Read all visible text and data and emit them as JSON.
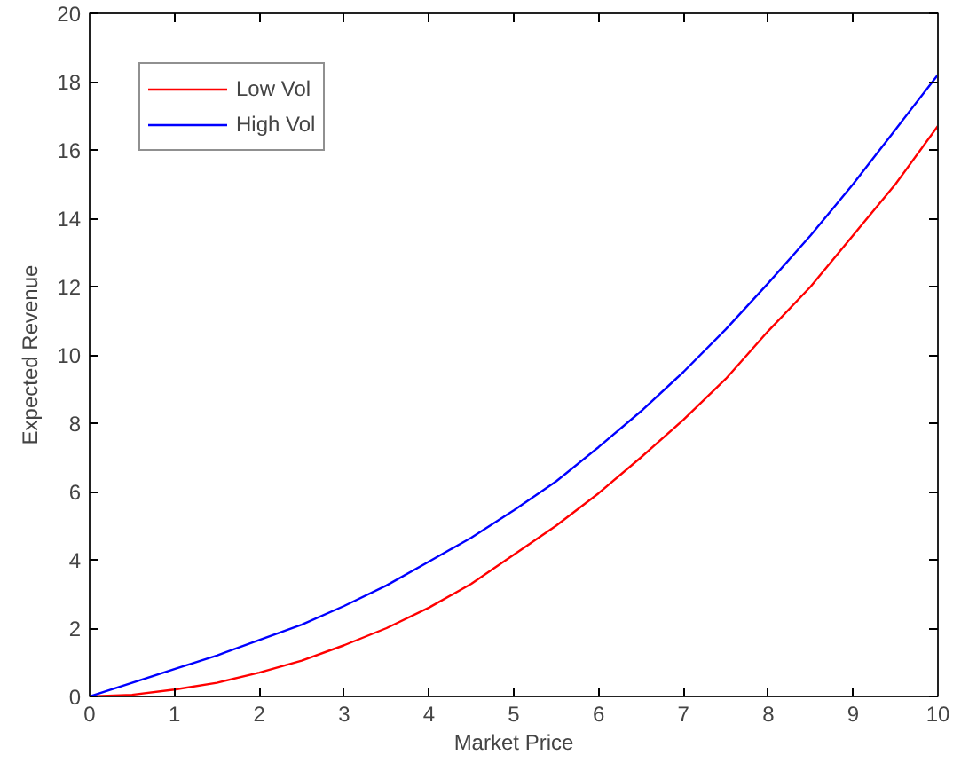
{
  "chart_data": {
    "type": "line",
    "xlabel": "Market Price",
    "ylabel": "Expected Revenue",
    "x": [
      0,
      0.5,
      1,
      1.5,
      2,
      2.5,
      3,
      3.5,
      4,
      4.5,
      5,
      5.5,
      6,
      6.5,
      7,
      7.5,
      8,
      8.5,
      9,
      9.5,
      10
    ],
    "series": [
      {
        "name": "Low Vol",
        "color": "#ff0000",
        "values": [
          0,
          0.05,
          0.2,
          0.4,
          0.7,
          1.05,
          1.5,
          2.0,
          2.6,
          3.3,
          4.15,
          5.0,
          5.95,
          7.0,
          8.1,
          9.3,
          10.7,
          12.0,
          13.5,
          15.0,
          16.7
        ]
      },
      {
        "name": "High Vol",
        "color": "#0000ff",
        "values": [
          0,
          0.4,
          0.8,
          1.2,
          1.65,
          2.1,
          2.65,
          3.25,
          3.95,
          4.65,
          5.45,
          6.3,
          7.3,
          8.35,
          9.5,
          10.75,
          12.1,
          13.5,
          15.0,
          16.6,
          18.2
        ]
      }
    ],
    "xlim": [
      0,
      10
    ],
    "ylim": [
      0,
      20
    ],
    "xticks": [
      0,
      1,
      2,
      3,
      4,
      5,
      6,
      7,
      8,
      9,
      10
    ],
    "yticks": [
      0,
      2,
      4,
      6,
      8,
      10,
      12,
      14,
      16,
      18,
      20
    ],
    "grid": false,
    "legend": "top left",
    "line_style": "solid",
    "marker": "none"
  }
}
